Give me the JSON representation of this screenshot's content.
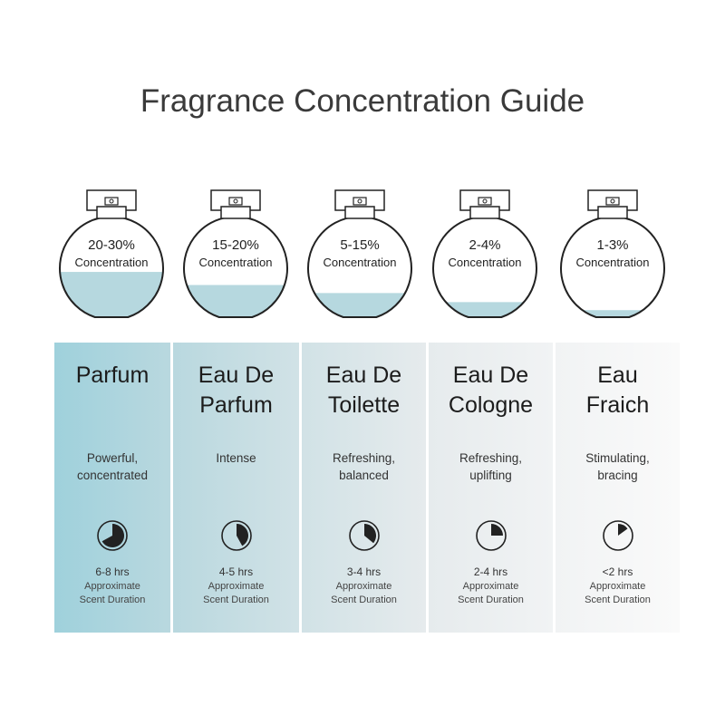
{
  "title": "Fragrance Concentration Guide",
  "colors": {
    "fill_liquid": "#b6d8df",
    "outline": "#222222"
  },
  "types": [
    {
      "concentration": "20-30%",
      "concentration_label": "Concentration",
      "fill_level": 0.45,
      "name_line1": "Parfum",
      "name_line2": "",
      "desc_line1": "Powerful,",
      "desc_line2": "concentrated",
      "clock_fraction": 0.67,
      "hours": "6-8 hrs",
      "sub_line1": "Approximate",
      "sub_line2": "Scent Duration",
      "bg": "#9fd1dc"
    },
    {
      "concentration": "15-20%",
      "concentration_label": "Concentration",
      "fill_level": 0.32,
      "name_line1": "Eau De",
      "name_line2": "Parfum",
      "desc_line1": "Intense",
      "desc_line2": "",
      "clock_fraction": 0.42,
      "hours": "4-5 hrs",
      "sub_line1": "Approximate",
      "sub_line2": "Scent Duration",
      "bg": "#b9d8df"
    },
    {
      "concentration": "5-15%",
      "concentration_label": "Concentration",
      "fill_level": 0.24,
      "name_line1": "Eau De",
      "name_line2": "Toilette",
      "desc_line1": "Refreshing,",
      "desc_line2": "balanced",
      "clock_fraction": 0.36,
      "hours": "3-4 hrs",
      "sub_line1": "Approximate",
      "sub_line2": "Scent Duration",
      "bg": "#d1e2e6"
    },
    {
      "concentration": "2-4%",
      "concentration_label": "Concentration",
      "fill_level": 0.15,
      "name_line1": "Eau De",
      "name_line2": "Cologne",
      "desc_line1": "Refreshing,",
      "desc_line2": "uplifting",
      "clock_fraction": 0.25,
      "hours": "2-4 hrs",
      "sub_line1": "Approximate",
      "sub_line2": "Scent Duration",
      "bg": "#e6ebed"
    },
    {
      "concentration": "1-3%",
      "concentration_label": "Concentration",
      "fill_level": 0.07,
      "name_line1": "Eau",
      "name_line2": "Fraich",
      "desc_line1": "Stimulating,",
      "desc_line2": "bracing",
      "clock_fraction": 0.15,
      "hours": "<2 hrs",
      "sub_line1": "Approximate",
      "sub_line2": "Scent Duration",
      "bg": "#f1f3f4"
    }
  ]
}
